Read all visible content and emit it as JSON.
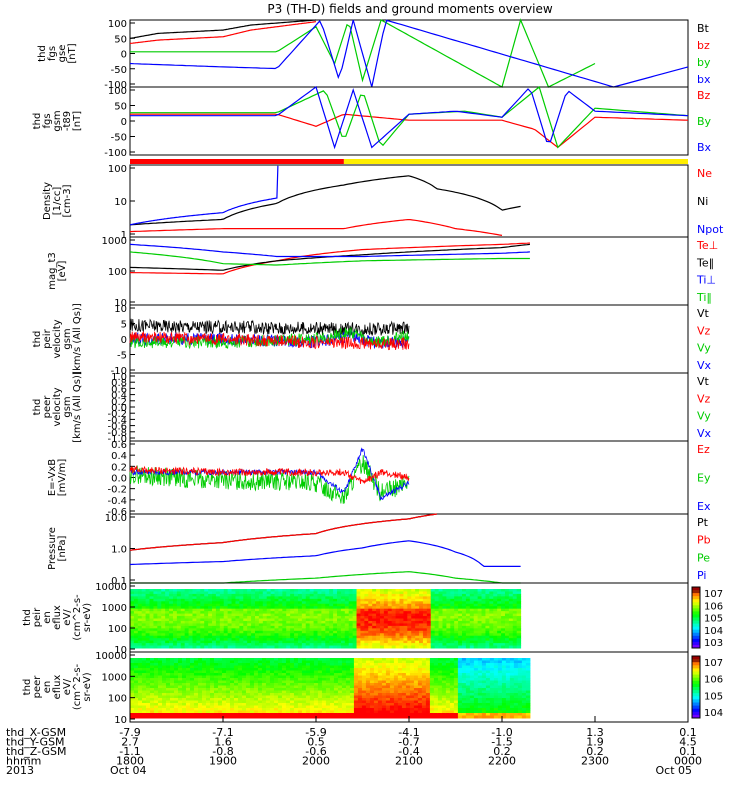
{
  "title": "P3 (TH-D) fields and ground moments overview",
  "chart_data": {
    "type": "line",
    "panels": [
      {
        "ylabel": [
          "thd",
          "fgs",
          "gse",
          "[nT]"
        ],
        "yticks": [
          "100",
          "50",
          "0",
          "-50",
          "-100"
        ],
        "legend": [
          {
            "label": "Bt",
            "color": "#000000"
          },
          {
            "label": "bz",
            "color": "#ff0000"
          },
          {
            "label": "by",
            "color": "#00cc00"
          },
          {
            "label": "bx",
            "color": "#0000ff"
          }
        ],
        "ylim": [
          -100,
          100
        ],
        "series": [
          {
            "name": "Bt",
            "x": [
              1800,
              1830,
              1900,
              1930,
              2000
            ],
            "y": [
              45,
              60,
              70,
              85,
              100
            ]
          },
          {
            "name": "bz",
            "x": [
              1800,
              1830,
              1900,
              1930,
              2000
            ],
            "y": [
              30,
              40,
              50,
              70,
              95
            ]
          },
          {
            "name": "by",
            "x": [
              1800,
              1900,
              1958,
              2000,
              2020,
              2035,
              2050,
              2070,
              2200,
              2220,
              2250,
              2300
            ],
            "y": [
              5,
              5,
              5,
              80,
              -30,
              100,
              -80,
              100,
              -100,
              100,
              -100,
              -30
            ]
          },
          {
            "name": "bx",
            "x": [
              1800,
              1900,
              1958,
              2005,
              2025,
              2040,
              2060,
              2075,
              2320,
              2400
            ],
            "y": [
              -30,
              -40,
              -45,
              100,
              -80,
              100,
              -100,
              100,
              -100,
              -40
            ]
          }
        ]
      },
      {
        "ylabel": [
          "thd",
          "fgs",
          "gsm",
          "-t89",
          "[nT]"
        ],
        "yticks": [
          "100",
          "50",
          "0",
          "-50",
          "-100"
        ],
        "legend": [
          {
            "label": "Bz",
            "color": "#ff0000"
          },
          {
            "label": "By",
            "color": "#00cc00"
          },
          {
            "label": "Bx",
            "color": "#0000ff"
          }
        ],
        "ylim": [
          -125,
          100
        ],
        "series": [
          {
            "name": "Bz",
            "x": [
              1800,
              1900,
              1958,
              2000,
              2030,
              2100,
              2200,
              2235,
              2260,
              2300,
              2400
            ],
            "y": [
              10,
              10,
              10,
              -30,
              10,
              -10,
              -10,
              -40,
              -100,
              0,
              -10
            ]
          },
          {
            "name": "By",
            "x": [
              1800,
              1900,
              1958,
              2010,
              2030,
              2050,
              2070,
              2100,
              2160,
              2200,
              2240,
              2260,
              2300,
              2400
            ],
            "y": [
              15,
              15,
              15,
              90,
              -80,
              90,
              -100,
              10,
              20,
              0,
              100,
              -100,
              30,
              5
            ]
          },
          {
            "name": "Bx",
            "x": [
              1800,
              1900,
              1958,
              2000,
              2020,
              2040,
              2060,
              2100,
              2150,
              2200,
              2230,
              2250,
              2270,
              2300,
              2400
            ],
            "y": [
              5,
              5,
              5,
              100,
              -100,
              90,
              -100,
              10,
              20,
              0,
              100,
              -100,
              90,
              20,
              5
            ]
          }
        ]
      },
      {
        "ylabel": [
          "Density",
          "[1/cc]",
          "[cm-3]"
        ],
        "yticks": [
          "100",
          "10",
          "1"
        ],
        "legend": [
          {
            "label": "Ne",
            "color": "#ff0000"
          },
          {
            "label": "Ni",
            "color": "#000000"
          },
          {
            "label": "Npot",
            "color": "#0000ff"
          }
        ],
        "ylim": [
          0.8,
          180
        ],
        "log": true,
        "series": [
          {
            "name": "Ni",
            "x": [
              1800,
              1900,
              1958,
              2030,
              2100,
              2130,
              2200,
              2220
            ],
            "y": [
              2,
              3,
              10,
              40,
              80,
              30,
              6,
              8
            ]
          },
          {
            "name": "Ne",
            "x": [
              1800,
              1900,
              1958,
              2030,
              2100,
              2150,
              2200
            ],
            "y": [
              1.2,
              1.5,
              1.5,
              1.5,
              3,
              1.5,
              0.9
            ]
          },
          {
            "name": "Npot",
            "x": [
              1800,
              1900,
              1958,
              1958.5,
              1959
            ],
            "y": [
              2,
              5,
              15,
              170,
              170
            ]
          }
        ]
      },
      {
        "ylabel": [
          "mag_t3",
          "[eV]"
        ],
        "yticks": [
          "1000",
          "100",
          "10"
        ],
        "legend": [
          {
            "label": "Te⊥",
            "color": "#ff0000"
          },
          {
            "label": "Te‖",
            "color": "#000000"
          },
          {
            "label": "Ti⊥",
            "color": "#0000ff"
          },
          {
            "label": "Ti‖",
            "color": "#00cc00"
          }
        ],
        "ylim": [
          8,
          1600
        ],
        "log": true,
        "series": [
          {
            "name": "Te⊥",
            "x": [
              1800,
              1900,
              1958,
              2050,
              2200,
              2230
            ],
            "y": [
              100,
              90,
              250,
              600,
              900,
              1000
            ]
          },
          {
            "name": "Te‖",
            "x": [
              1800,
              1900,
              1958,
              2050,
              2200,
              2230
            ],
            "y": [
              150,
              120,
              250,
              400,
              700,
              900
            ]
          },
          {
            "name": "Ti⊥",
            "x": [
              1800,
              1900,
              1958,
              2050,
              2200,
              2230
            ],
            "y": [
              900,
              500,
              350,
              350,
              450,
              500
            ]
          },
          {
            "name": "Ti‖",
            "x": [
              1800,
              1900,
              1958,
              2050,
              2200,
              2230
            ],
            "y": [
              500,
              200,
              180,
              250,
              300,
              300
            ]
          }
        ]
      },
      {
        "ylabel": [
          "thd",
          "peir",
          "velocity",
          "gsm",
          "[km/s (All Qs)]"
        ],
        "yticks": [
          "10",
          "5",
          "0",
          "-5",
          "-10"
        ],
        "legend": [
          {
            "label": "Vt",
            "color": "#000000"
          },
          {
            "label": "Vz",
            "color": "#ff0000"
          },
          {
            "label": "Vy",
            "color": "#00cc00"
          },
          {
            "label": "Vx",
            "color": "#0000ff"
          }
        ],
        "ylim": [
          -10,
          10
        ],
        "series": [
          {
            "name": "Vt",
            "x": [
              1800,
              1900,
              2000,
              2100
            ],
            "y": [
              4,
              3.5,
              3,
              3
            ],
            "noise": 2
          },
          {
            "name": "Vx",
            "x": [
              1800,
              1900,
              2000,
              2040,
              2060,
              2100
            ],
            "y": [
              0,
              0,
              -1,
              1,
              -1,
              -1
            ],
            "noise": 1.8
          },
          {
            "name": "Vy",
            "x": [
              1800,
              1900,
              2000,
              2040,
              2060,
              2100
            ],
            "y": [
              -1,
              -1,
              0,
              2,
              -1,
              1
            ],
            "noise": 1.8
          },
          {
            "name": "Vz",
            "x": [
              1800,
              1900,
              2000,
              2100
            ],
            "y": [
              0.5,
              0,
              -1,
              -1.5
            ],
            "noise": 1.8
          }
        ]
      },
      {
        "ylabel": [
          "thd",
          "peer",
          "velocity",
          "gsm",
          "[km/s (All Qs)]"
        ],
        "yticks": [
          "1.0",
          "0.8",
          "0.6",
          "0.4",
          "0.2",
          "0.0",
          "-0.2",
          "-0.4",
          "-0.6",
          "-0.8",
          "-1.0"
        ],
        "legend": [
          {
            "label": "Vt",
            "color": "#000000"
          },
          {
            "label": "Vz",
            "color": "#ff0000"
          },
          {
            "label": "Vy",
            "color": "#00cc00"
          },
          {
            "label": "Vx",
            "color": "#0000ff"
          }
        ],
        "ylim": [
          -1,
          1
        ],
        "series": []
      },
      {
        "ylabel": [
          "E=-VxB",
          "[mV/m]"
        ],
        "yticks": [
          "0.6",
          "0.4",
          "0.2",
          "0.0",
          "-0.2",
          "-0.4",
          "-0.6"
        ],
        "legend": [
          {
            "label": "Ez",
            "color": "#ff0000"
          },
          {
            "label": "Ey",
            "color": "#00cc00"
          },
          {
            "label": "Ex",
            "color": "#0000ff"
          }
        ],
        "ylim": [
          -0.7,
          0.7
        ],
        "series": [
          {
            "name": "Ey",
            "x": [
              1800,
              1900,
              2000,
              2030,
              2050,
              2070,
              2100
            ],
            "y": [
              0.05,
              -0.05,
              -0.1,
              -0.4,
              0.3,
              -0.3,
              -0.1
            ],
            "noise": 0.18
          },
          {
            "name": "Ex",
            "x": [
              1800,
              1900,
              2000,
              2030,
              2050,
              2070,
              2100
            ],
            "y": [
              0.1,
              0.1,
              0.1,
              -0.3,
              0.55,
              -0.4,
              -0.1
            ],
            "noise": 0.05
          },
          {
            "name": "Ez",
            "x": [
              1800,
              1900,
              2000,
              2030,
              2050,
              2070,
              2100
            ],
            "y": [
              0.15,
              0.1,
              0.1,
              0.1,
              -0.1,
              0.1,
              0.0
            ],
            "noise": 0.07
          }
        ]
      },
      {
        "ylabel": [
          "Pressure",
          "[nPa]"
        ],
        "yticks": [
          "10.0",
          "1.0",
          "0.1"
        ],
        "legend": [
          {
            "label": "Pt",
            "color": "#000000"
          },
          {
            "label": "Pb",
            "color": "#ff0000"
          },
          {
            "label": "Pe",
            "color": "#00cc00"
          },
          {
            "label": "Pi",
            "color": "#0000ff"
          }
        ],
        "ylim": [
          0.05,
          40
        ],
        "log": true,
        "series": [
          {
            "name": "Pt",
            "x": [
              1800,
              1900,
              2000,
              2100,
              2130
            ],
            "y": [
              1.2,
              2.5,
              6,
              25,
              40
            ]
          },
          {
            "name": "Pb",
            "x": [
              1800,
              1900,
              2000,
              2100,
              2130
            ],
            "y": [
              1.2,
              2.5,
              6,
              25,
              40
            ]
          },
          {
            "name": "Pi",
            "x": [
              1800,
              1900,
              2000,
              2050,
              2100,
              2150,
              2180,
              2220
            ],
            "y": [
              0.3,
              0.4,
              0.7,
              1.5,
              3,
              1,
              0.25,
              0.25
            ]
          },
          {
            "name": "Pe",
            "x": [
              1800,
              1900,
              2000,
              2100,
              2150,
              2200,
              2220
            ],
            "y": [
              0.05,
              0.05,
              0.08,
              0.15,
              0.08,
              0.05,
              0.05
            ]
          }
        ]
      },
      {
        "type": "heatmap",
        "ylabel": [
          "thd",
          "peir",
          "en",
          "eflux",
          "eV/",
          "(cm^2-s-",
          "sr-eV)"
        ],
        "yticks": [
          "10000",
          "1000",
          "100",
          "10"
        ],
        "colorbar_ticks": [
          "10^7",
          "10^6",
          "10^5",
          "10^4",
          "10^3"
        ]
      },
      {
        "type": "heatmap",
        "ylabel": [
          "thd",
          "peer",
          "en",
          "eflux",
          "eV/",
          "(cm^2-s-",
          "sr-eV)"
        ],
        "yticks": [
          "10000",
          "1000",
          "100",
          "10"
        ],
        "colorbar_ticks": [
          "10^7",
          "10^6",
          "10^5",
          "10^4"
        ]
      }
    ],
    "x_range": [
      1800,
      2400
    ],
    "ephemeris": {
      "labels": [
        "thd_X-GSM",
        "thd_Y-GSM",
        "thd_Z-GSM",
        "hhmm",
        "2013"
      ],
      "columns": [
        [
          "-7.9",
          "2.7",
          "-1.1",
          "1800",
          "Oct 04"
        ],
        [
          "-7.1",
          "1.6",
          "-0.8",
          "1900",
          ""
        ],
        [
          "-5.9",
          "0.5",
          "-0.6",
          "2000",
          ""
        ],
        [
          "-4.1",
          "-0.7",
          "-0.4",
          "2100",
          ""
        ],
        [
          "-1.0",
          "-1.5",
          "0.2",
          "2200",
          ""
        ],
        [
          "1.3",
          "1.9",
          "0.2",
          "2300",
          ""
        ],
        [
          "0.1",
          "4.5",
          "0.1",
          "0000",
          "Oct 05"
        ]
      ]
    }
  }
}
